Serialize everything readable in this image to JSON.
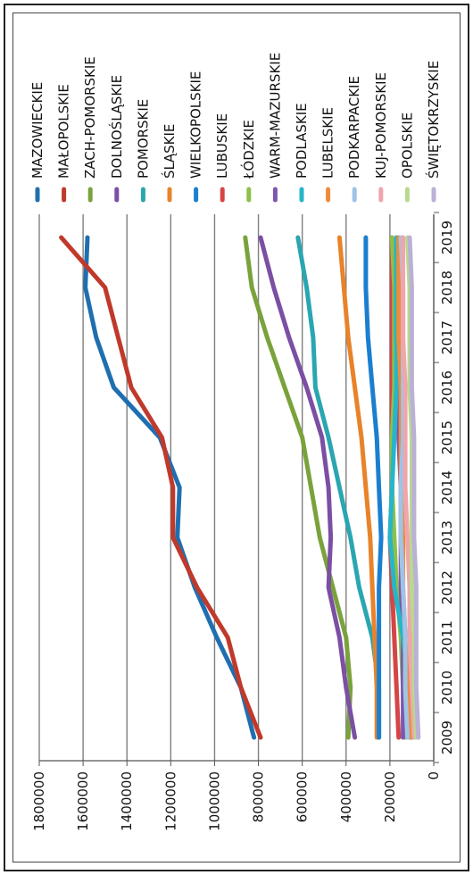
{
  "chart_data": {
    "type": "line",
    "title": "",
    "xlabel": "",
    "ylabel": "",
    "x": [
      "2009",
      "2010",
      "2011",
      "2012",
      "2013",
      "2014",
      "2015",
      "2016",
      "2017",
      "2018",
      "2019"
    ],
    "ylim": [
      0,
      1800000
    ],
    "yticks": [
      0,
      200000,
      400000,
      600000,
      800000,
      1000000,
      1200000,
      1400000,
      1600000,
      1800000
    ],
    "ytick_labels": [
      "0",
      "200000",
      "400000",
      "600000",
      "800000",
      "1000000",
      "1200000",
      "1400000",
      "1600000",
      "1800000"
    ],
    "grid": true,
    "legend_position": "right",
    "orientation": "rotated 90 degrees clockwise",
    "series": [
      {
        "name": "MAZOWIECKIE",
        "color": "#1f6fb0",
        "values": [
          820000,
          880000,
          990000,
          1090000,
          1170000,
          1160000,
          1250000,
          1460000,
          1540000,
          1590000,
          1580000
        ]
      },
      {
        "name": "MAŁOPOLSKIE",
        "color": "#c0392b",
        "values": [
          790000,
          880000,
          940000,
          1080000,
          1190000,
          1190000,
          1240000,
          1380000,
          1440000,
          1500000,
          1700000
        ]
      },
      {
        "name": "ZACH-POMORSKIE",
        "color": "#7aa23c",
        "values": [
          390000,
          380000,
          400000,
          460000,
          520000,
          560000,
          600000,
          680000,
          760000,
          830000,
          860000
        ]
      },
      {
        "name": "DOLNOŚLĄSKIE",
        "color": "#7b4fa3",
        "values": [
          360000,
          400000,
          430000,
          480000,
          470000,
          480000,
          510000,
          580000,
          660000,
          730000,
          790000
        ]
      },
      {
        "name": "POMORSKIE",
        "color": "#2aa6b0",
        "values": [
          250000,
          250000,
          280000,
          340000,
          380000,
          430000,
          480000,
          540000,
          550000,
          580000,
          620000
        ]
      },
      {
        "name": "ŚLĄSKIE",
        "color": "#e8832a",
        "values": [
          260000,
          260000,
          270000,
          280000,
          290000,
          310000,
          330000,
          360000,
          390000,
          410000,
          430000
        ]
      },
      {
        "name": "WIELKOPOLSKIE",
        "color": "#1b7fcf",
        "values": [
          250000,
          250000,
          250000,
          250000,
          240000,
          250000,
          260000,
          280000,
          300000,
          310000,
          310000
        ]
      },
      {
        "name": "LUBUSKIE",
        "color": "#d64545",
        "values": [
          160000,
          170000,
          180000,
          190000,
          200000,
          190000,
          190000,
          190000,
          190000,
          190000,
          190000
        ]
      },
      {
        "name": "ŁÓDZKIE",
        "color": "#8dc04a",
        "values": [
          130000,
          140000,
          150000,
          170000,
          180000,
          190000,
          190000,
          180000,
          180000,
          180000,
          190000
        ]
      },
      {
        "name": "WARM-MAZURSKIE",
        "color": "#7d56ad",
        "values": [
          140000,
          140000,
          140000,
          150000,
          150000,
          150000,
          160000,
          160000,
          170000,
          170000,
          170000
        ]
      },
      {
        "name": "PODLASKIE",
        "color": "#26b5c9",
        "values": [
          100000,
          110000,
          140000,
          180000,
          200000,
          190000,
          180000,
          170000,
          170000,
          170000,
          170000
        ]
      },
      {
        "name": "LUBELSKIE",
        "color": "#f08b3a",
        "values": [
          110000,
          120000,
          130000,
          140000,
          140000,
          150000,
          150000,
          150000,
          160000,
          160000,
          160000
        ]
      },
      {
        "name": "PODKARPACKIE",
        "color": "#9ec4e6",
        "values": [
          120000,
          130000,
          130000,
          140000,
          150000,
          150000,
          140000,
          140000,
          140000,
          140000,
          150000
        ]
      },
      {
        "name": "KUJ-POMORSKIE",
        "color": "#f0a5ad",
        "values": [
          90000,
          100000,
          110000,
          110000,
          120000,
          130000,
          130000,
          130000,
          140000,
          140000,
          140000
        ]
      },
      {
        "name": "OPOLSKIE",
        "color": "#b9d98e",
        "values": [
          80000,
          90000,
          90000,
          100000,
          100000,
          100000,
          100000,
          110000,
          110000,
          110000,
          120000
        ]
      },
      {
        "name": "ŚWIĘTOKRZYSKIE",
        "color": "#bbb0d6",
        "values": [
          70000,
          80000,
          80000,
          80000,
          90000,
          90000,
          90000,
          100000,
          100000,
          100000,
          110000
        ]
      }
    ]
  }
}
